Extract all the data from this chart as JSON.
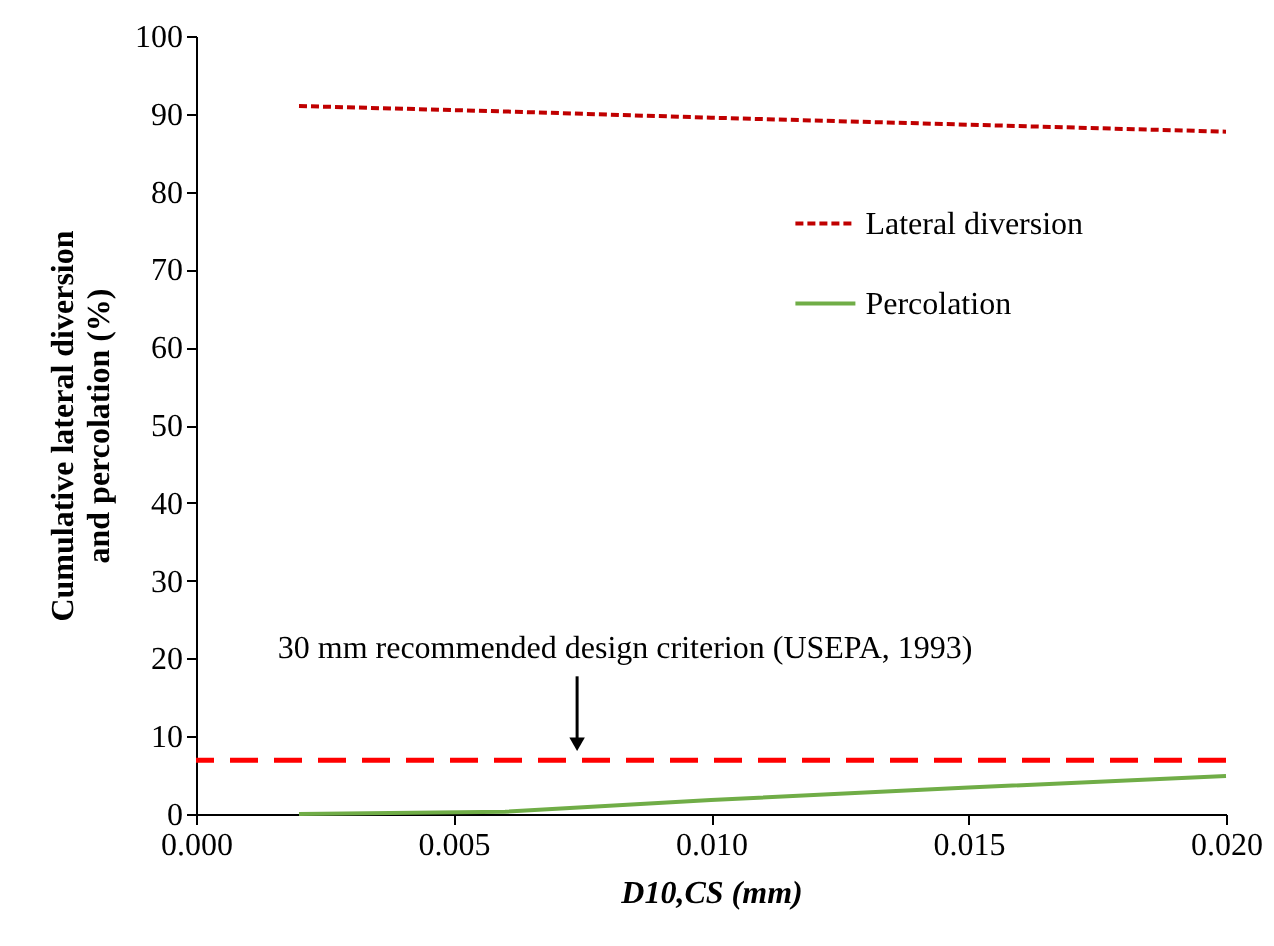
{
  "chart_data": {
    "type": "line",
    "xlabel": "D10,CS (mm)",
    "ylabel": "Cumulative lateral diversion\nand percolation (%)",
    "x": [
      0.002,
      0.006,
      0.01,
      0.015,
      0.02
    ],
    "series": [
      {
        "name": "Lateral diversion",
        "color": "#c00000",
        "line_style": "dotted",
        "values": [
          91.0,
          90.3,
          89.5,
          88.6,
          87.7
        ]
      },
      {
        "name": "Percolation",
        "color": "#70ad47",
        "line_style": "solid",
        "values": [
          0.0,
          0.3,
          1.8,
          3.4,
          4.9
        ]
      }
    ],
    "ref_lines": [
      {
        "axis": "y",
        "value": 6.9,
        "color": "#ff0000",
        "line_style": "dashed"
      }
    ],
    "annotations": [
      {
        "text": "30 mm recommended design criterion (USEPA, 1993)",
        "x": 0.0074,
        "y": 6.9
      }
    ],
    "xlim": [
      0,
      0.02
    ],
    "xticks": [
      {
        "value": 0,
        "label": "0.000"
      },
      {
        "value": 0.005,
        "label": "0.005"
      },
      {
        "value": 0.01,
        "label": "0.010"
      },
      {
        "value": 0.015,
        "label": "0.015"
      },
      {
        "value": 0.02,
        "label": "0.020"
      }
    ],
    "ylim": [
      0,
      100
    ],
    "yticks": [
      0,
      10,
      20,
      30,
      40,
      50,
      60,
      70,
      80,
      90,
      100
    ],
    "grid": false,
    "legend": "right",
    "marker": "none"
  }
}
